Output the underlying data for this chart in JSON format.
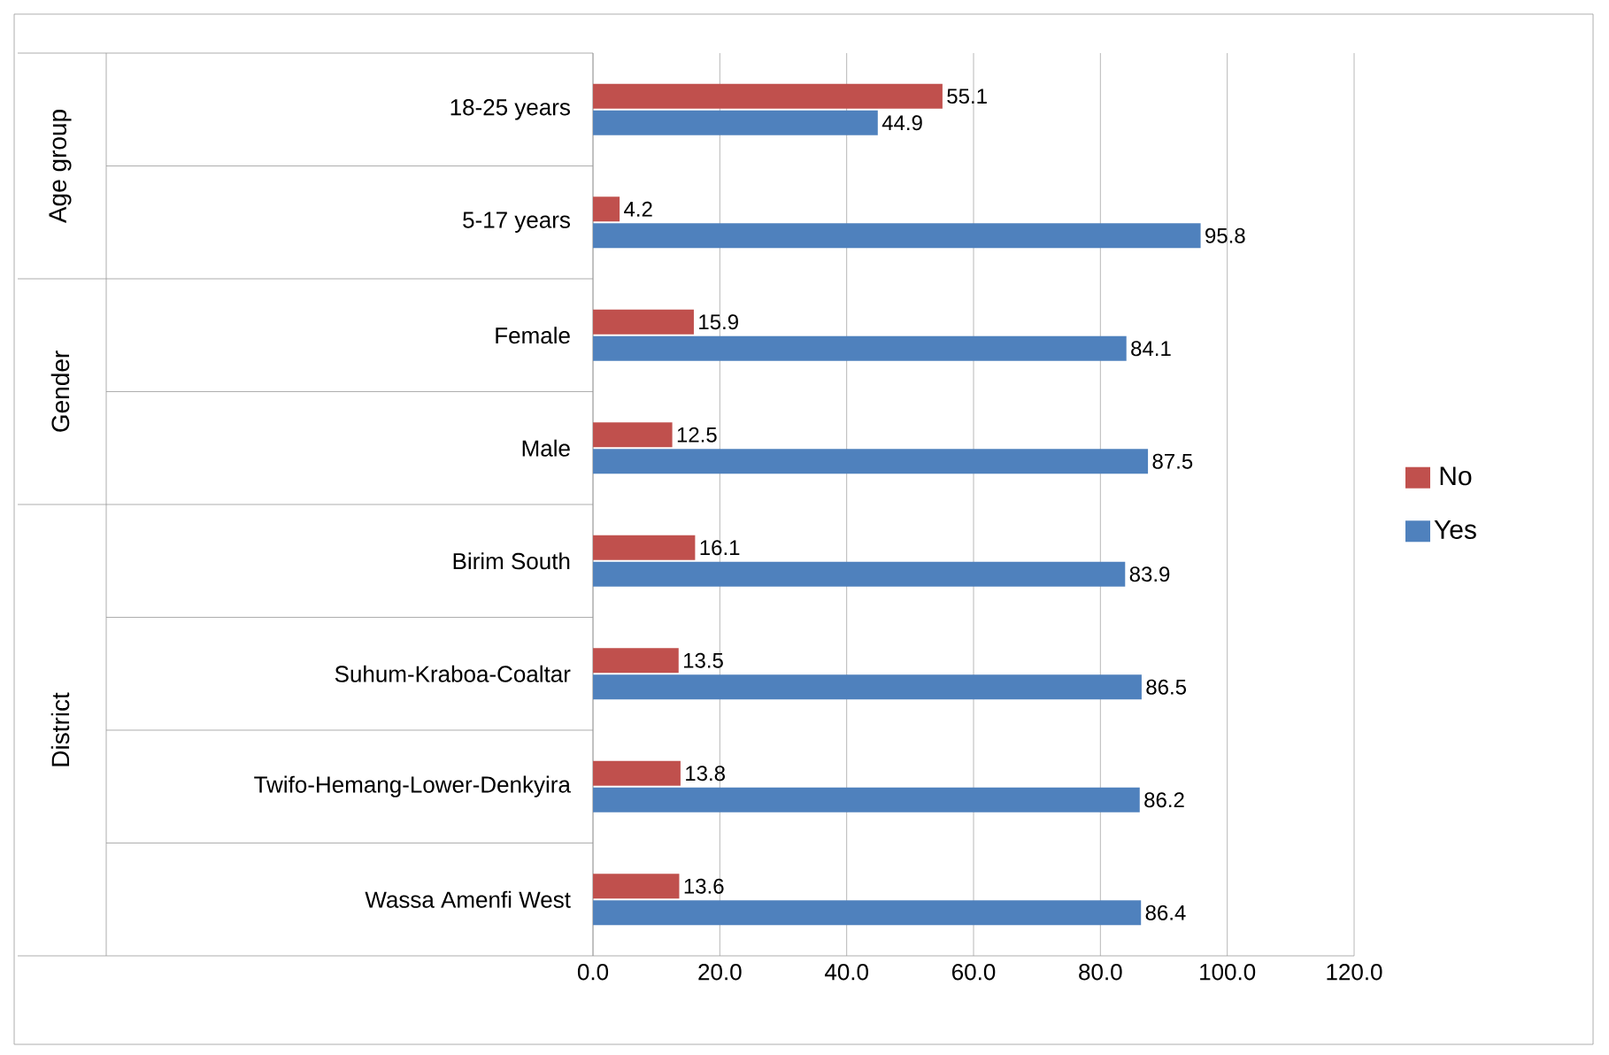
{
  "chart_data": {
    "type": "bar",
    "orientation": "horizontal",
    "categories": [
      "18-25 years",
      "5-17 years",
      "Female",
      "Male",
      "Birim South",
      "Suhum-Kraboa-Coaltar",
      "Twifo-Hemang-Lower-Denkyira",
      "Wassa Amenfi West"
    ],
    "series": [
      {
        "name": "No",
        "color": "#c0504d",
        "values": [
          55.1,
          4.2,
          15.9,
          12.5,
          16.1,
          13.5,
          13.8,
          13.6
        ]
      },
      {
        "name": "Yes",
        "color": "#4f81bd",
        "values": [
          44.9,
          95.8,
          84.1,
          87.5,
          83.9,
          86.5,
          86.2,
          86.4
        ]
      }
    ],
    "xlim": [
      0,
      120
    ],
    "xticks": [
      {
        "value": 0,
        "label": "0.0"
      },
      {
        "value": 20,
        "label": "20.0"
      },
      {
        "value": 40,
        "label": "40.0"
      },
      {
        "value": 60,
        "label": "60.0"
      },
      {
        "value": 80,
        "label": "80.0"
      },
      {
        "value": 100,
        "label": "100.0"
      },
      {
        "value": 120,
        "label": "120.0"
      }
    ],
    "grid": "x",
    "legend": "right",
    "data_labels": true,
    "annotations": [
      "Age group",
      "Gender",
      "District"
    ]
  }
}
